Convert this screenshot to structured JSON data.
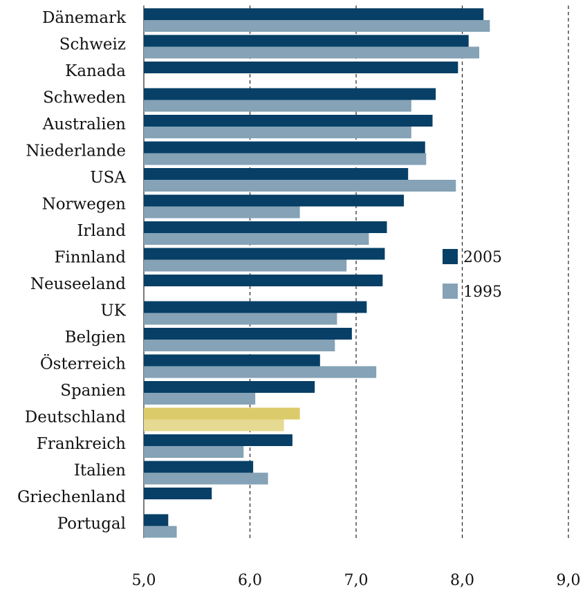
{
  "chart_data": {
    "type": "hbar",
    "categories": [
      "Dänemark",
      "Schweiz",
      "Kanada",
      "Schweden",
      "Australien",
      "Niederlande",
      "USA",
      "Norwegen",
      "Irland",
      "Finnland",
      "Neuseeland",
      "UK",
      "Belgien",
      "Österreich",
      "Spanien",
      "Deutschland",
      "Frankreich",
      "Italien",
      "Griechenland",
      "Portugal"
    ],
    "series": [
      {
        "name": "2005",
        "color": "#073f66",
        "values": [
          8.2,
          8.06,
          7.96,
          7.75,
          7.72,
          7.65,
          7.49,
          7.45,
          7.29,
          7.27,
          7.25,
          7.1,
          6.96,
          6.66,
          6.61,
          6.47,
          6.4,
          6.03,
          5.64,
          5.23
        ]
      },
      {
        "name": "1995",
        "color": "#85a2b6",
        "values": [
          8.26,
          8.16,
          null,
          7.52,
          7.52,
          7.66,
          7.94,
          6.47,
          7.12,
          6.91,
          null,
          6.82,
          6.8,
          7.19,
          6.05,
          6.32,
          5.94,
          6.17,
          null,
          5.31
        ]
      }
    ],
    "highlight": {
      "category": "Deutschland",
      "colors": [
        "#dccb6a",
        "#e6da92"
      ]
    },
    "xlim": [
      5,
      9
    ],
    "xticks": [
      {
        "value": 5,
        "label": "5,0"
      },
      {
        "value": 6,
        "label": "6,0"
      },
      {
        "value": 7,
        "label": "7,0"
      },
      {
        "value": 8,
        "label": "8,0"
      },
      {
        "value": 9,
        "label": "9,0"
      }
    ],
    "grid": true,
    "legend": "right"
  }
}
